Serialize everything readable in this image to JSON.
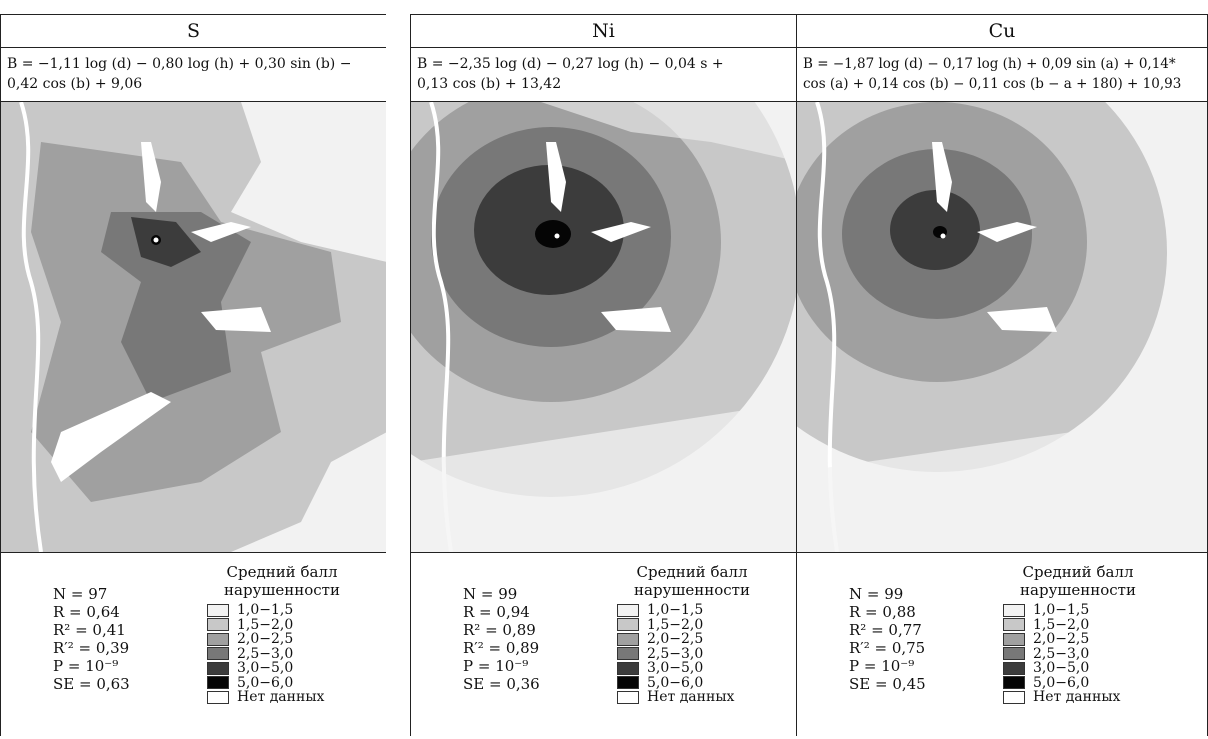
{
  "panels": [
    {
      "element": "S",
      "formula_line1": "B = −1,11 log (d) − 0,80 log (h) + 0,30 sin (b) −",
      "formula_line2": "0,42 cos (b) + 9,06",
      "stats": {
        "n": "N = 97",
        "r": "R = 0,64",
        "r2": "R² = 0,41",
        "r2adj": "R′² = 0,39",
        "p": "P = 10⁻⁹",
        "se": "SE = 0,63"
      }
    },
    {
      "element": "Ni",
      "formula_line1": "B = −2,35 log (d) − 0,27 log (h) − 0,04 s +",
      "formula_line2": "0,13 cos (b) + 13,42",
      "stats": {
        "n": "N = 99",
        "r": "R = 0,94",
        "r2": "R² = 0,89",
        "r2adj": "R′² = 0,89",
        "p": "P = 10⁻⁹",
        "se": "SE = 0,36"
      }
    },
    {
      "element": "Cu",
      "formula_line1": "B = −1,87 log (d) − 0,17 log (h) + 0,09 sin (a) + 0,14*",
      "formula_line2": "cos (a) + 0,14 cos (b) − 0,11 cos (b − a + 180) + 10,93",
      "stats": {
        "n": "N = 99",
        "r": "R = 0,88",
        "r2": "R² = 0,77",
        "r2adj": "R′² = 0,75",
        "p": "P = 10⁻⁹",
        "se": "SE = 0,45"
      }
    }
  ],
  "legend": {
    "title_line1": "Средний балл",
    "title_line2": "нарушенности",
    "classes": [
      {
        "label": "1,0−1,5",
        "color": "#f2f2f2"
      },
      {
        "label": "1,5−2,0",
        "color": "#c8c8c8"
      },
      {
        "label": "2,0−2,5",
        "color": "#a0a0a0"
      },
      {
        "label": "2,5−3,0",
        "color": "#787878"
      },
      {
        "label": "3,0−5,0",
        "color": "#3c3c3c"
      },
      {
        "label": "5,0−6,0",
        "color": "#050505"
      },
      {
        "label": "Нет данных",
        "color": "#ffffff"
      }
    ]
  }
}
